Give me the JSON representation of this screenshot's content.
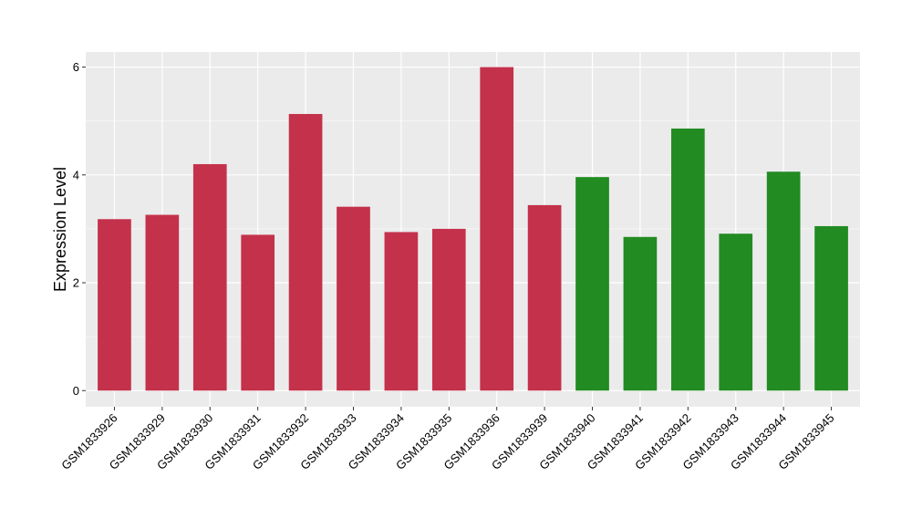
{
  "chart_data": {
    "type": "bar",
    "title": "",
    "xlabel": "",
    "ylabel": "Expression Level",
    "ylim": [
      -0.3,
      6.28
    ],
    "yticks": [
      0,
      2,
      4,
      6
    ],
    "grid": true,
    "legend": "none",
    "panel_background": "#EBEBEB",
    "grid_color": "#FFFFFF",
    "categories": [
      "GSM1833926",
      "GSM1833929",
      "GSM1833930",
      "GSM1833931",
      "GSM1833932",
      "GSM1833933",
      "GSM1833934",
      "GSM1833935",
      "GSM1833936",
      "GSM1833939",
      "GSM1833940",
      "GSM1833941",
      "GSM1833942",
      "GSM1833943",
      "GSM1833944",
      "GSM1833945"
    ],
    "values": [
      3.18,
      3.26,
      4.2,
      2.89,
      5.13,
      3.41,
      2.94,
      3.0,
      6.0,
      3.44,
      3.96,
      2.85,
      4.86,
      2.91,
      4.06,
      3.05
    ],
    "colors": [
      "#C4314B",
      "#C4314B",
      "#C4314B",
      "#C4314B",
      "#C4314B",
      "#C4314B",
      "#C4314B",
      "#C4314B",
      "#C4314B",
      "#C4314B",
      "#228B22",
      "#228B22",
      "#228B22",
      "#228B22",
      "#228B22",
      "#228B22"
    ]
  }
}
